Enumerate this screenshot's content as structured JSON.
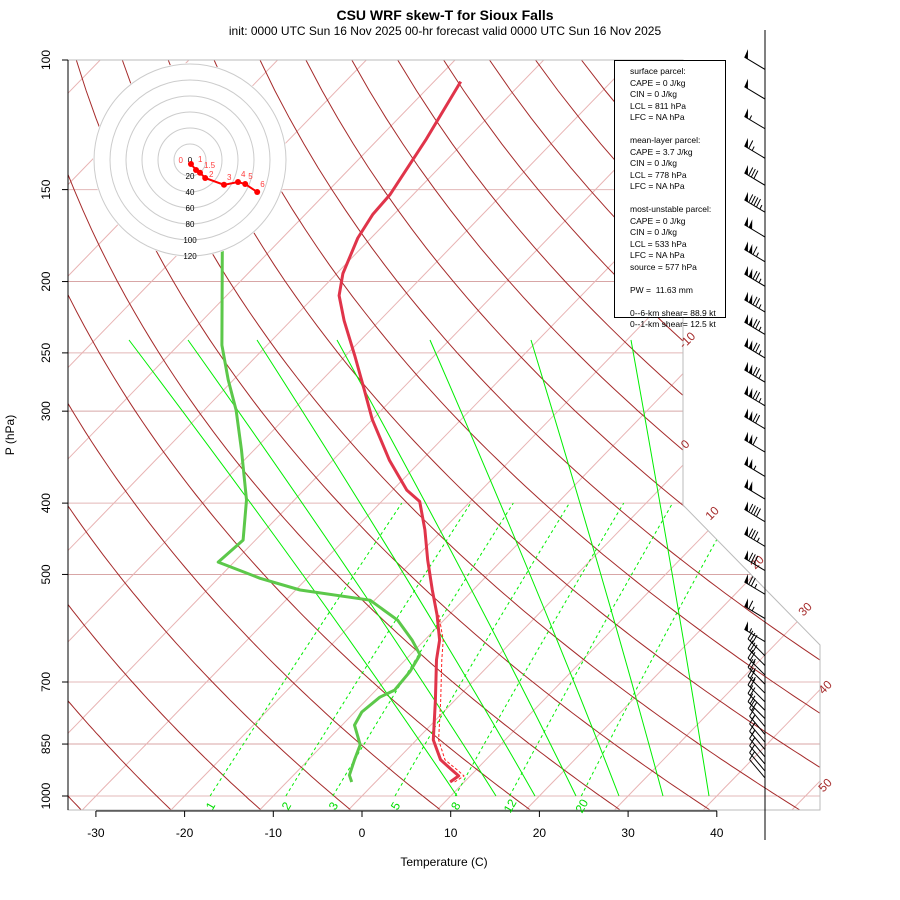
{
  "header": {
    "title": "CSU WRF skew-T for Sioux Falls",
    "subtitle": "init: 0000 UTC Sun 16 Nov 2025     00-hr forecast valid 0000 UTC Sun 16 Nov 2025"
  },
  "legend": {
    "lines": [
      "surface parcel:",
      "CAPE = 0 J/kg",
      "CIN = 0 J/kg",
      "LCL = 811 hPa",
      "LFC = NA hPa",
      "",
      "mean-layer parcel:",
      "CAPE = 3.7 J/kg",
      "CIN = 0 J/kg",
      "LCL = 778 hPa",
      "LFC = NA hPa",
      "",
      "most-unstable parcel:",
      "CAPE = 0 J/kg",
      "CIN = 0 J/kg",
      "LCL = 533 hPa",
      "LFC = NA hPa",
      "source = 577 hPa",
      "",
      "PW =  11.63 mm",
      "",
      "0--6-km shear= 88.9 kt",
      "0--1-km shear= 12.5 kt"
    ]
  },
  "chart_data": {
    "type": "line",
    "title": "CSU WRF skew-T for Sioux Falls",
    "xlabel": "Temperature (C)",
    "ylabel": "P (hPa)",
    "x_ticks": [
      -30,
      -20,
      -10,
      0,
      10,
      20,
      30,
      40
    ],
    "y_ticks": [
      100,
      150,
      200,
      250,
      300,
      400,
      500,
      700,
      850,
      1000
    ],
    "ylim": [
      1050,
      100
    ],
    "isotherm_labels": [
      -10,
      0,
      10,
      20,
      30,
      40,
      50
    ],
    "mixing_ratio_labels": [
      1,
      2,
      3,
      5,
      8,
      12,
      20
    ],
    "colors": {
      "temperature": "#e0344a",
      "dewpoint": "#5cc84a",
      "isotherm": "#e8b4b4",
      "dry_adiabat": "#a52a2a",
      "moist_adiabat": "#00ee00",
      "mixing_ratio": "#00ee00",
      "hodograph": "#ff0000"
    },
    "series": [
      {
        "name": "temperature",
        "points": [
          [
            957,
            8.4
          ],
          [
            939,
            8.7
          ],
          [
            922,
            7.3
          ],
          [
            893,
            4.9
          ],
          [
            839,
            1.9
          ],
          [
            741,
            -2.2
          ],
          [
            653,
            -6.5
          ],
          [
            614,
            -8.3
          ],
          [
            568,
            -11.3
          ],
          [
            525,
            -14.6
          ],
          [
            478,
            -18.4
          ],
          [
            435,
            -22.0
          ],
          [
            398,
            -25.7
          ],
          [
            384,
            -28.4
          ],
          [
            350,
            -33.6
          ],
          [
            308,
            -40.0
          ],
          [
            281,
            -44.1
          ],
          [
            252,
            -49.0
          ],
          [
            226,
            -54.0
          ],
          [
            209,
            -57.3
          ],
          [
            195,
            -59.3
          ],
          [
            174.5,
            -61.5
          ],
          [
            162,
            -62.4
          ],
          [
            152.5,
            -62.6
          ],
          [
            128,
            -64.6
          ],
          [
            107,
            -67.0
          ]
        ]
      },
      {
        "name": "virtual temperature",
        "points": [
          [
            957,
            8.9
          ],
          [
            939,
            9.3
          ],
          [
            922,
            7.9
          ],
          [
            893,
            5.4
          ],
          [
            839,
            2.5
          ],
          [
            741,
            -1.6
          ],
          [
            653,
            -5.9
          ],
          [
            614,
            -7.9
          ],
          [
            568,
            -11.1
          ]
        ]
      },
      {
        "name": "dewpoint",
        "points": [
          [
            957,
            -2.7
          ],
          [
            937,
            -3.7
          ],
          [
            893,
            -4.8
          ],
          [
            852,
            -5.8
          ],
          [
            801,
            -8.6
          ],
          [
            769,
            -9.2
          ],
          [
            734,
            -8.8
          ],
          [
            718,
            -7.9
          ],
          [
            678,
            -8.2
          ],
          [
            643,
            -8.9
          ],
          [
            614,
            -11.4
          ],
          [
            577,
            -15.2
          ],
          [
            542,
            -20.5
          ],
          [
            525,
            -29.5
          ],
          [
            506,
            -35.3
          ],
          [
            481,
            -41.8
          ],
          [
            449,
            -41.4
          ],
          [
            396,
            -45.4
          ],
          [
            339,
            -51.4
          ],
          [
            299,
            -56.4
          ],
          [
            272,
            -60.6
          ],
          [
            244,
            -65.1
          ],
          [
            181,
            -75.5
          ]
        ]
      }
    ],
    "winds": [
      {
        "p": 103,
        "dir": 301,
        "kt": 50
      },
      {
        "p": 113,
        "dir": 301,
        "kt": 50
      },
      {
        "p": 124,
        "dir": 301,
        "kt": 55
      },
      {
        "p": 136,
        "dir": 301,
        "kt": 65
      },
      {
        "p": 148,
        "dir": 301,
        "kt": 80
      },
      {
        "p": 161,
        "dir": 301,
        "kt": 95
      },
      {
        "p": 174,
        "dir": 301,
        "kt": 100
      },
      {
        "p": 188,
        "dir": 301,
        "kt": 115
      },
      {
        "p": 203,
        "dir": 301,
        "kt": 125
      },
      {
        "p": 220,
        "dir": 301,
        "kt": 125
      },
      {
        "p": 236,
        "dir": 301,
        "kt": 125
      },
      {
        "p": 254,
        "dir": 301,
        "kt": 125
      },
      {
        "p": 274,
        "dir": 301,
        "kt": 125
      },
      {
        "p": 295,
        "dir": 301,
        "kt": 125
      },
      {
        "p": 317,
        "dir": 301,
        "kt": 120
      },
      {
        "p": 341,
        "dir": 301,
        "kt": 110
      },
      {
        "p": 368,
        "dir": 301,
        "kt": 105
      },
      {
        "p": 395,
        "dir": 301,
        "kt": 100
      },
      {
        "p": 424,
        "dir": 301,
        "kt": 90
      },
      {
        "p": 458,
        "dir": 301,
        "kt": 85
      },
      {
        "p": 494,
        "dir": 301,
        "kt": 80
      },
      {
        "p": 532,
        "dir": 301,
        "kt": 75
      },
      {
        "p": 574,
        "dir": 301,
        "kt": 65
      },
      {
        "p": 617,
        "dir": 301,
        "kt": 55
      },
      {
        "p": 645,
        "dir": 315,
        "kt": 30
      },
      {
        "p": 665,
        "dir": 315,
        "kt": 30
      },
      {
        "p": 685,
        "dir": 315,
        "kt": 25
      },
      {
        "p": 705,
        "dir": 315,
        "kt": 25
      },
      {
        "p": 725,
        "dir": 315,
        "kt": 25
      },
      {
        "p": 745,
        "dir": 315,
        "kt": 20
      },
      {
        "p": 765,
        "dir": 315,
        "kt": 20
      },
      {
        "p": 785,
        "dir": 315,
        "kt": 20
      },
      {
        "p": 805,
        "dir": 320,
        "kt": 20
      },
      {
        "p": 825,
        "dir": 320,
        "kt": 15
      },
      {
        "p": 845,
        "dir": 320,
        "kt": 15
      },
      {
        "p": 865,
        "dir": 320,
        "kt": 15
      },
      {
        "p": 885,
        "dir": 320,
        "kt": 15
      },
      {
        "p": 905,
        "dir": 320,
        "kt": 10
      },
      {
        "p": 925,
        "dir": 320,
        "kt": 10
      },
      {
        "p": 945,
        "dir": 320,
        "kt": 10
      }
    ],
    "hodograph": {
      "ring_labels": [
        0,
        20,
        40,
        60,
        80,
        100,
        120
      ],
      "points": [
        {
          "label": "0",
          "u": 1.2,
          "v": -5
        },
        {
          "label": "1",
          "u": 7.5,
          "v": -12.5
        },
        {
          "label": "1.5",
          "u": 12.5,
          "v": -16
        },
        {
          "label": "2",
          "u": 19,
          "v": -22.5
        },
        {
          "label": "3",
          "u": 42.5,
          "v": -31
        },
        {
          "label": "4",
          "u": 60,
          "v": -27.5
        },
        {
          "label": "5",
          "u": 69,
          "v": -30
        },
        {
          "label": "6",
          "u": 84,
          "v": -40
        }
      ]
    }
  }
}
